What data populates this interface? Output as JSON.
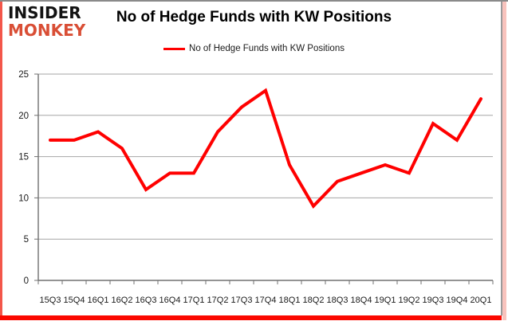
{
  "logo": {
    "line1": "INSIDER",
    "line2": "MONKEY"
  },
  "header": {
    "title": "No of Hedge Funds with KW Positions"
  },
  "legend": {
    "label": "No of Hedge Funds with KW Positions"
  },
  "colors": {
    "line": "#ff0000",
    "logo_red": "#d94e35",
    "border_red": "#fb0800",
    "border_pink": "#f8c3bd",
    "border_gray": "#8a8a8a",
    "gridline": "#a6a6a6",
    "axis": "#707070",
    "text": "#1a1a1a",
    "background": "#ffffff"
  },
  "chart_data": {
    "type": "line",
    "title": "No of Hedge Funds with KW Positions",
    "x": [
      "15Q3",
      "15Q4",
      "16Q1",
      "16Q2",
      "16Q3",
      "16Q4",
      "17Q1",
      "17Q2",
      "17Q3",
      "17Q4",
      "18Q1",
      "18Q2",
      "18Q3",
      "18Q4",
      "19Q1",
      "19Q2",
      "19Q3",
      "19Q4",
      "20Q1"
    ],
    "series": [
      {
        "name": "No of Hedge Funds with KW Positions",
        "color": "#ff0000",
        "values": [
          17,
          17,
          18,
          16,
          11,
          13,
          13,
          18,
          21,
          23,
          14,
          9,
          12,
          13,
          14,
          13,
          19,
          17,
          22
        ]
      }
    ],
    "xlabel": "",
    "ylabel": "",
    "ylim": [
      0,
      25
    ],
    "yticks": [
      0,
      5,
      10,
      15,
      20,
      25
    ],
    "grid": true,
    "legend_position": "top-center"
  }
}
